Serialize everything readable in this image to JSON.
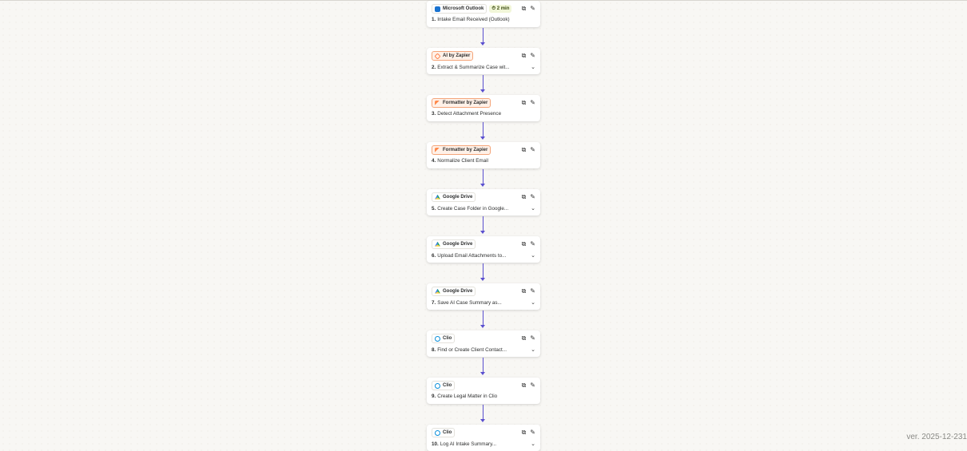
{
  "steps": [
    {
      "num": "1.",
      "app": "Microsoft Outlook",
      "icon": "outlook-icon",
      "style": "plain",
      "time": "2 min",
      "title": "Intake Email Received (Outlook)",
      "expand": false
    },
    {
      "num": "2.",
      "app": "AI by Zapier",
      "icon": "ai-zapier-icon",
      "style": "orange",
      "title": "Extract & Summarize Case wit...",
      "expand": true
    },
    {
      "num": "3.",
      "app": "Formatter by Zapier",
      "icon": "formatter-icon",
      "style": "orange",
      "title": "Detect Attachment Presence",
      "expand": false
    },
    {
      "num": "4.",
      "app": "Formatter by Zapier",
      "icon": "formatter-icon",
      "style": "orange",
      "title": "Normalize Client Email",
      "expand": false
    },
    {
      "num": "5.",
      "app": "Google Drive",
      "icon": "google-drive-icon",
      "style": "plain",
      "title": "Create Case Folder in Google...",
      "expand": true
    },
    {
      "num": "6.",
      "app": "Google Drive",
      "icon": "google-drive-icon",
      "style": "plain",
      "title": "Upload Email Attachments to...",
      "expand": true
    },
    {
      "num": "7.",
      "app": "Google Drive",
      "icon": "google-drive-icon",
      "style": "plain",
      "title": "Save AI Case Summary as...",
      "expand": true
    },
    {
      "num": "8.",
      "app": "Clio",
      "icon": "clio-icon",
      "style": "plain",
      "title": "Find or Create Client Contact...",
      "expand": true
    },
    {
      "num": "9.",
      "app": "Clio",
      "icon": "clio-icon",
      "style": "plain",
      "title": "Create Legal Matter in Clio",
      "expand": false
    },
    {
      "num": "10.",
      "app": "Clio",
      "icon": "clio-icon",
      "style": "plain",
      "title": "Log AI Intake Summary...",
      "expand": true
    }
  ],
  "version": "ver. 2025-12-231",
  "colors": {
    "connector": "#5a4fcf",
    "orange_badge": "#f4a57a",
    "canvas": "#f8f7f4"
  }
}
